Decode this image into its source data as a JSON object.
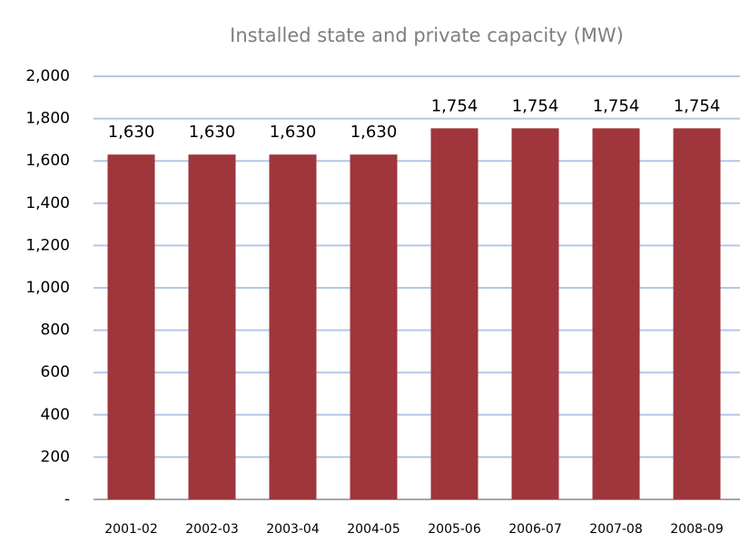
{
  "chart_data": {
    "type": "bar",
    "title": "Installed state and private capacity (MW)",
    "categories": [
      "2001-02",
      "2002-03",
      "2003-04",
      "2004-05",
      "2005-06",
      "2006-07",
      "2007-08",
      "2008-09"
    ],
    "values": [
      1630,
      1630,
      1630,
      1630,
      1754,
      1754,
      1754,
      1754
    ],
    "value_labels": [
      "1,630",
      "1,630",
      "1,630",
      "1,630",
      "1,754",
      "1,754",
      "1,754",
      "1,754"
    ],
    "color": "#9e363c",
    "ylim": [
      0,
      2000
    ],
    "yticks": [
      {
        "value": 0,
        "label": "-"
      },
      200,
      400,
      600,
      800,
      {
        "value": 1000,
        "label": "1,000"
      },
      {
        "value": 1200,
        "label": "1,200"
      },
      {
        "value": 1400,
        "label": "1,400"
      },
      {
        "value": 1600,
        "label": "1,600"
      },
      {
        "value": 1800,
        "label": "1,800"
      },
      {
        "value": 2000,
        "label": "2,000"
      }
    ],
    "grid": true
  }
}
